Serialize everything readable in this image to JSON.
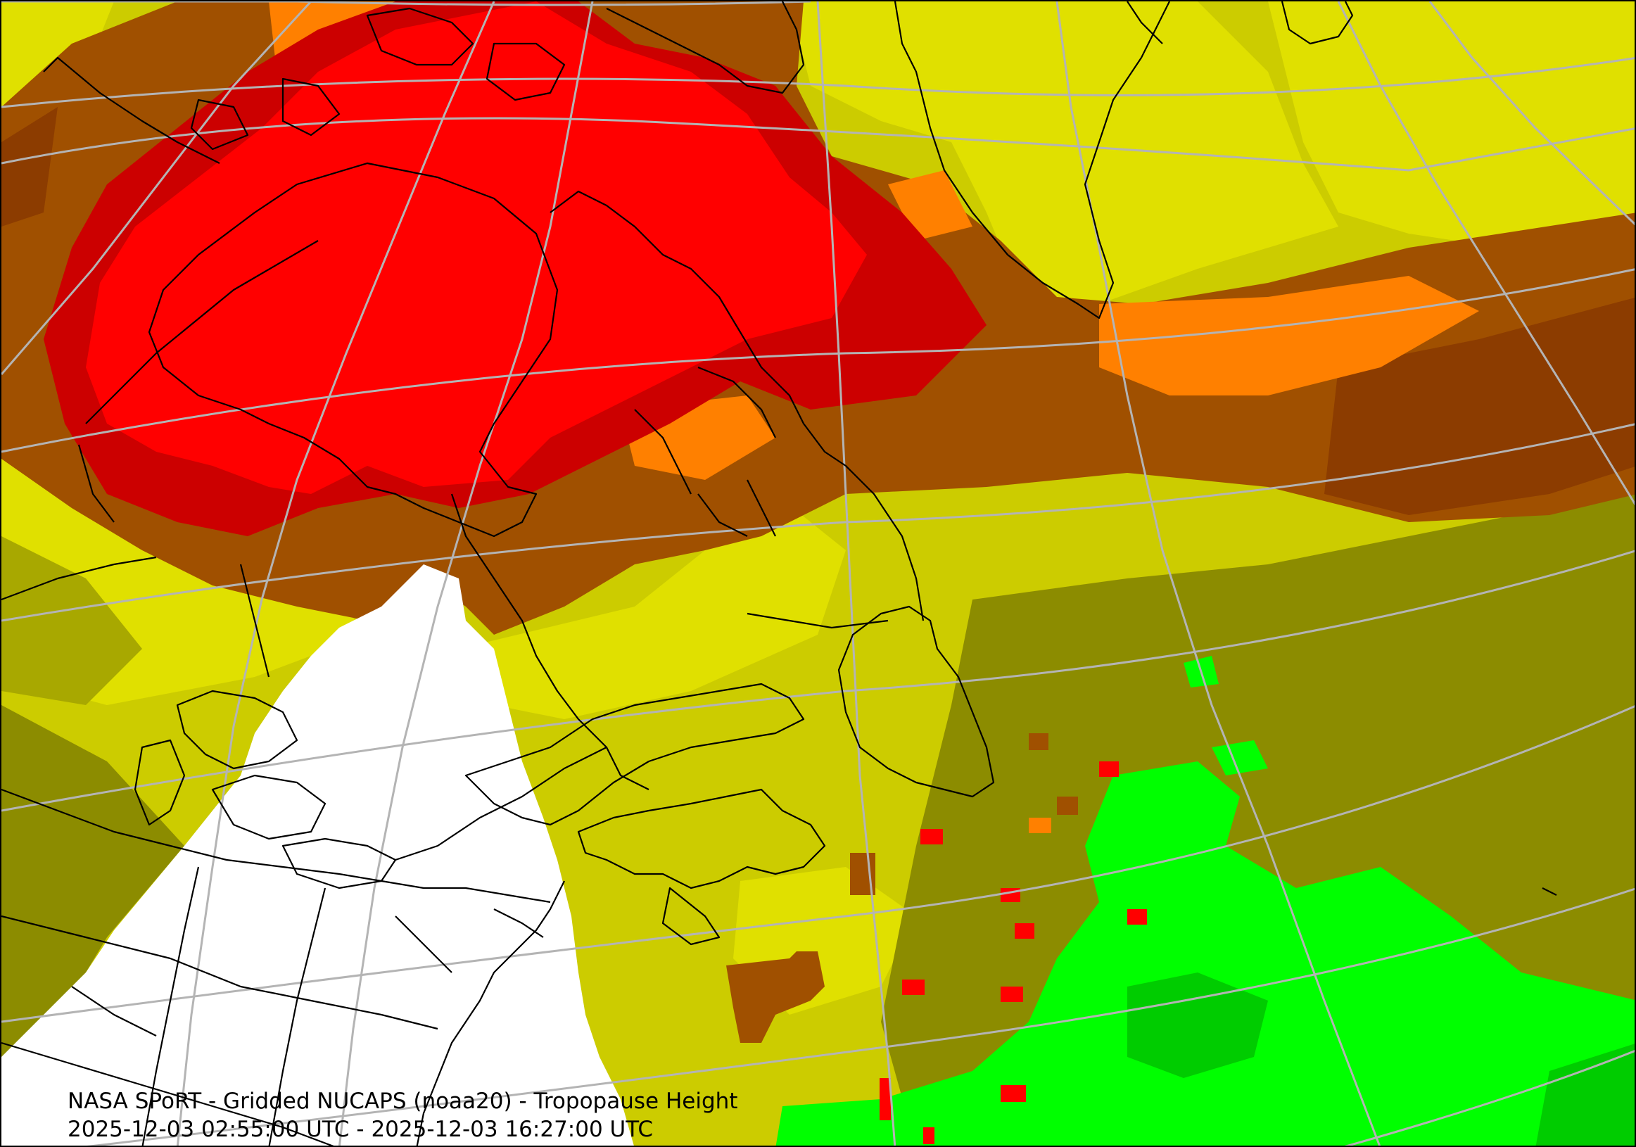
{
  "caption": {
    "line1": "NASA SPoRT - Gridded NUCAPS (noaa20) - Tropopause Height",
    "line2": "2025-12-03 02:55:00 UTC - 2025-12-03 16:27:00 UTC"
  },
  "map": {
    "product": "Tropopause Height",
    "satellite": "noaa20",
    "palette": {
      "highest": "#ff0000",
      "very_high": "#cc0000",
      "high": "#ff8000",
      "mid_high": "#a05000",
      "mid": "#cccc00",
      "mid_low": "#e0e000",
      "low": "#888800",
      "lower": "#00cc00",
      "lowest": "#00ff00",
      "no_data": "#ffffff",
      "graticule": "#b4b4b4",
      "boundaries": "#000000"
    }
  }
}
